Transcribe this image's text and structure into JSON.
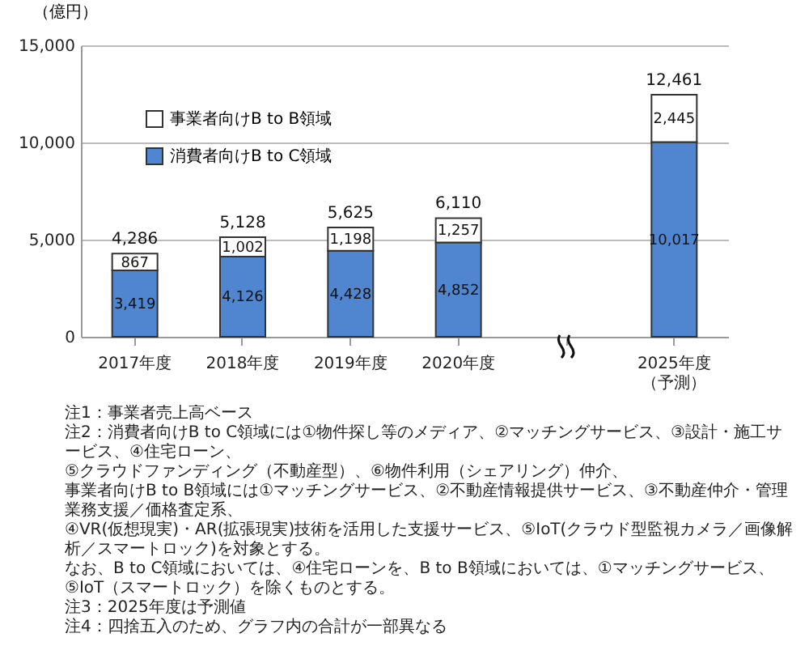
{
  "chart_data": {
    "type": "bar",
    "stacked": true,
    "ylabel": "（億円）",
    "categories": [
      "2017年度",
      "2018年度",
      "2019年度",
      "2020年度",
      null,
      "2025年度（予測）"
    ],
    "series": [
      {
        "name": "消費者向けB to C領域",
        "color": "#4f86cf",
        "values": [
          3419,
          4126,
          4428,
          4852,
          null,
          10017
        ],
        "value_labels": [
          "3,419",
          "4,126",
          "4,428",
          "4,852",
          null,
          "10,017"
        ]
      },
      {
        "name": "事業者向けB to B領域",
        "color": "#ffffff",
        "values": [
          867,
          1002,
          1198,
          1257,
          null,
          2445
        ],
        "value_labels": [
          "867",
          "1,002",
          "1,198",
          "1,257",
          null,
          "2,445"
        ]
      }
    ],
    "totals": [
      "4,286",
      "5,128",
      "5,625",
      "6,110",
      null,
      "12,461"
    ],
    "ylim": [
      0,
      15000
    ],
    "yticks": [
      0,
      {
        "value": 5000,
        "label": "5,000"
      },
      {
        "value": 10000,
        "label": "10,000"
      },
      {
        "value": 15000,
        "label": "15,000"
      }
    ],
    "grid": "y",
    "legend": "top left",
    "annotations": [
      "注1：事業者売上高ベース",
      "注2：消費者向けB to C領域には①物件探し等のメディア、②マッチングサービス、③設計・施工サービス、④住宅ローン、",
      "⑤クラウドファンディング（不動産型）、⑥物件利用（シェアリング）仲介、",
      "事業者向けB to B領域には①マッチングサービス、②不動産情報提供サービス、③不動産仲介・管理業務支援／価格査定系、",
      "④VR(仮想現実)・AR(拡張現実)技術を活用した支援サービス、⑤IoT(クラウド型監視カメラ／画像解析／スマートロック)を対象とする。",
      "なお、B to C領域においては、④住宅ローンを、B to B領域においては、①マッチングサービス、⑤IoT（スマートロック）を除くものとする。",
      "注3：2025年度は予測値",
      "注4：四捨五入のため、グラフ内の合計が一部異なる"
    ]
  }
}
